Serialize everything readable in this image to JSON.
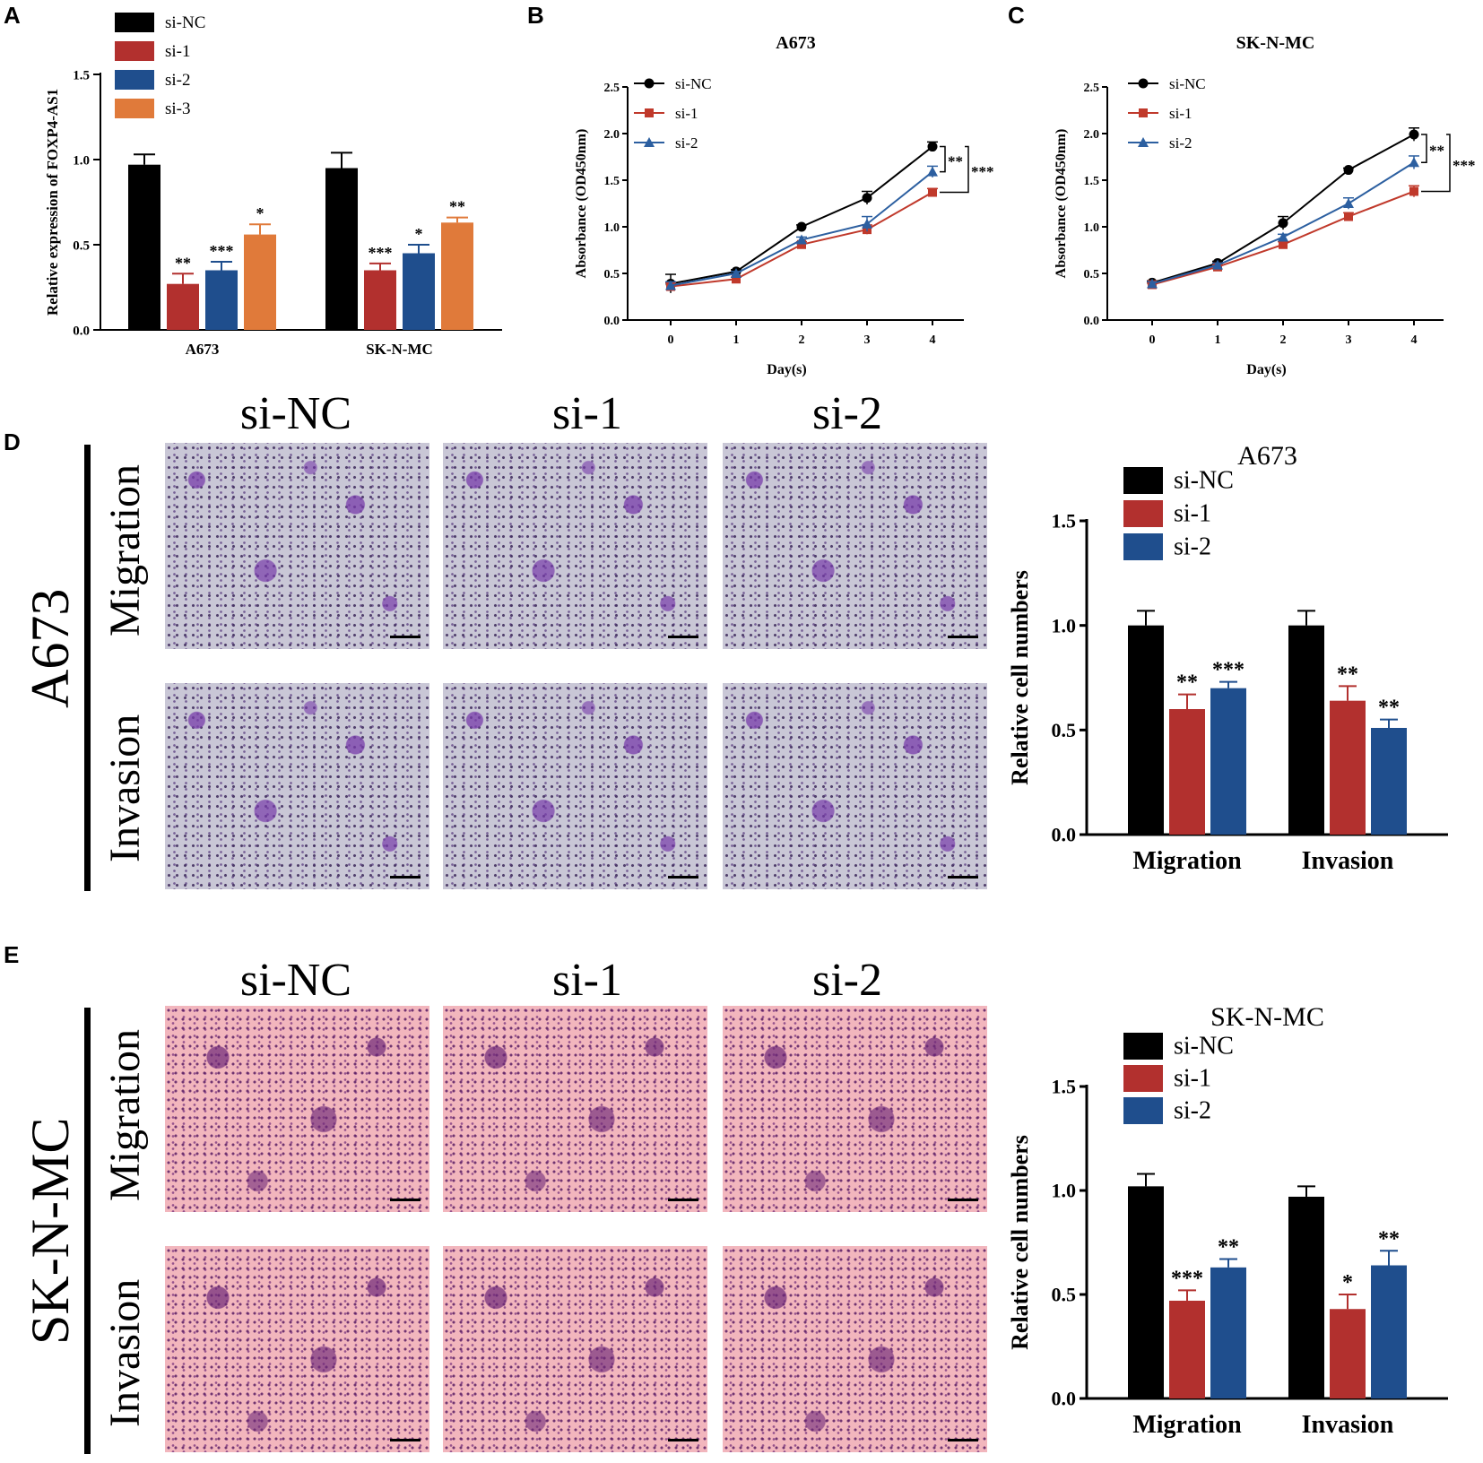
{
  "panels": {
    "A": "A",
    "B": "B",
    "C": "C",
    "D": "D",
    "E": "E"
  },
  "colors": {
    "si-NC": "#000000",
    "si-1": "#b2302e",
    "si-2": "#1f4e8d",
    "si-3": "#e07a3a",
    "line-si-1": "#c0392b",
    "line-si-2": "#2c5fa0"
  },
  "micro": {
    "col_headers": [
      "si-NC",
      "si-1",
      "si-2"
    ],
    "row_migration": "Migration",
    "row_invasion": "Invasion",
    "cell_D": "A673",
    "cell_E": "SK-N-MC"
  },
  "chart_data": [
    {
      "id": "A",
      "type": "bar",
      "title": "",
      "ylabel": "Relative expression of FOXP4-AS1",
      "xlabel": "",
      "ylim": [
        0,
        1.5
      ],
      "yticks": [
        "0.0",
        "0.5",
        "1.0",
        "1.5"
      ],
      "categories": [
        "A673",
        "SK-N-MC"
      ],
      "series": [
        {
          "name": "si-NC",
          "values": [
            0.97,
            0.95
          ],
          "errors": [
            0.06,
            0.09
          ],
          "sig": [
            "",
            ""
          ]
        },
        {
          "name": "si-1",
          "values": [
            0.27,
            0.35
          ],
          "errors": [
            0.06,
            0.04
          ],
          "sig": [
            "**",
            "***"
          ]
        },
        {
          "name": "si-2",
          "values": [
            0.35,
            0.45
          ],
          "errors": [
            0.05,
            0.05
          ],
          "sig": [
            "***",
            "*"
          ]
        },
        {
          "name": "si-3",
          "values": [
            0.56,
            0.63
          ],
          "errors": [
            0.06,
            0.03
          ],
          "sig": [
            "*",
            "**"
          ]
        }
      ],
      "legend": "top-left"
    },
    {
      "id": "B",
      "type": "line",
      "title": "A673",
      "xlabel": "Day(s)",
      "ylabel": "Absorbance (OD450nm)",
      "ylim": [
        0,
        2.5
      ],
      "yticks": [
        "0.0",
        "0.5",
        "1.0",
        "1.5",
        "2.0",
        "2.5"
      ],
      "x": [
        0,
        1,
        2,
        3,
        4
      ],
      "series": [
        {
          "name": "si-NC",
          "values": [
            0.39,
            0.52,
            1.0,
            1.31,
            1.86
          ],
          "errors": [
            0.1,
            0.02,
            0.02,
            0.07,
            0.05
          ],
          "marker": "circle"
        },
        {
          "name": "si-1",
          "values": [
            0.36,
            0.44,
            0.81,
            0.97,
            1.37
          ],
          "errors": [
            0.04,
            0.02,
            0.03,
            0.05,
            0.04
          ],
          "marker": "square"
        },
        {
          "name": "si-2",
          "values": [
            0.37,
            0.5,
            0.86,
            1.03,
            1.59
          ],
          "errors": [
            0.04,
            0.02,
            0.03,
            0.08,
            0.06
          ],
          "marker": "triangle"
        }
      ],
      "brackets": [
        {
          "label": "**"
        },
        {
          "label": "***"
        }
      ],
      "legend": "top-left"
    },
    {
      "id": "C",
      "type": "line",
      "title": "SK-N-MC",
      "xlabel": "Day(s)",
      "ylabel": "Absorbance (OD450nm)",
      "ylim": [
        0,
        2.5
      ],
      "yticks": [
        "0.0",
        "0.5",
        "1.0",
        "1.5",
        "2.0",
        "2.5"
      ],
      "x": [
        0,
        1,
        2,
        3,
        4
      ],
      "series": [
        {
          "name": "si-NC",
          "values": [
            0.4,
            0.61,
            1.04,
            1.61,
            1.99
          ],
          "errors": [
            0.02,
            0.02,
            0.07,
            0.02,
            0.07
          ],
          "marker": "circle"
        },
        {
          "name": "si-1",
          "values": [
            0.38,
            0.57,
            0.81,
            1.11,
            1.38
          ],
          "errors": [
            0.02,
            0.02,
            0.03,
            0.04,
            0.06
          ],
          "marker": "square"
        },
        {
          "name": "si-2",
          "values": [
            0.39,
            0.59,
            0.89,
            1.25,
            1.69
          ],
          "errors": [
            0.02,
            0.02,
            0.03,
            0.06,
            0.07
          ],
          "marker": "triangle"
        }
      ],
      "brackets": [
        {
          "label": "**"
        },
        {
          "label": "***"
        }
      ],
      "legend": "top-left"
    },
    {
      "id": "D",
      "type": "bar",
      "title": "A673",
      "ylabel": "Relative cell numbers",
      "xlabel": "",
      "ylim": [
        0,
        1.5
      ],
      "yticks": [
        "0.0",
        "0.5",
        "1.0",
        "1.5"
      ],
      "categories": [
        "Migration",
        "Invasion"
      ],
      "series": [
        {
          "name": "si-NC",
          "values": [
            1.0,
            1.0
          ],
          "errors": [
            0.07,
            0.07
          ],
          "sig": [
            "",
            ""
          ]
        },
        {
          "name": "si-1",
          "values": [
            0.6,
            0.64
          ],
          "errors": [
            0.07,
            0.07
          ],
          "sig": [
            "**",
            "**"
          ]
        },
        {
          "name": "si-2",
          "values": [
            0.7,
            0.51
          ],
          "errors": [
            0.03,
            0.04
          ],
          "sig": [
            "***",
            "**"
          ]
        }
      ],
      "legend": "top-left"
    },
    {
      "id": "E",
      "type": "bar",
      "title": "SK-N-MC",
      "ylabel": "Relative cell numbers",
      "xlabel": "",
      "ylim": [
        0,
        1.5
      ],
      "yticks": [
        "0.0",
        "0.5",
        "1.0",
        "1.5"
      ],
      "categories": [
        "Migration",
        "Invasion"
      ],
      "series": [
        {
          "name": "si-NC",
          "values": [
            1.02,
            0.97
          ],
          "errors": [
            0.06,
            0.05
          ],
          "sig": [
            "",
            ""
          ]
        },
        {
          "name": "si-1",
          "values": [
            0.47,
            0.43
          ],
          "errors": [
            0.05,
            0.07
          ],
          "sig": [
            "***",
            "*"
          ]
        },
        {
          "name": "si-2",
          "values": [
            0.63,
            0.64
          ],
          "errors": [
            0.04,
            0.07
          ],
          "sig": [
            "**",
            "**"
          ]
        }
      ],
      "legend": "top-left"
    }
  ]
}
